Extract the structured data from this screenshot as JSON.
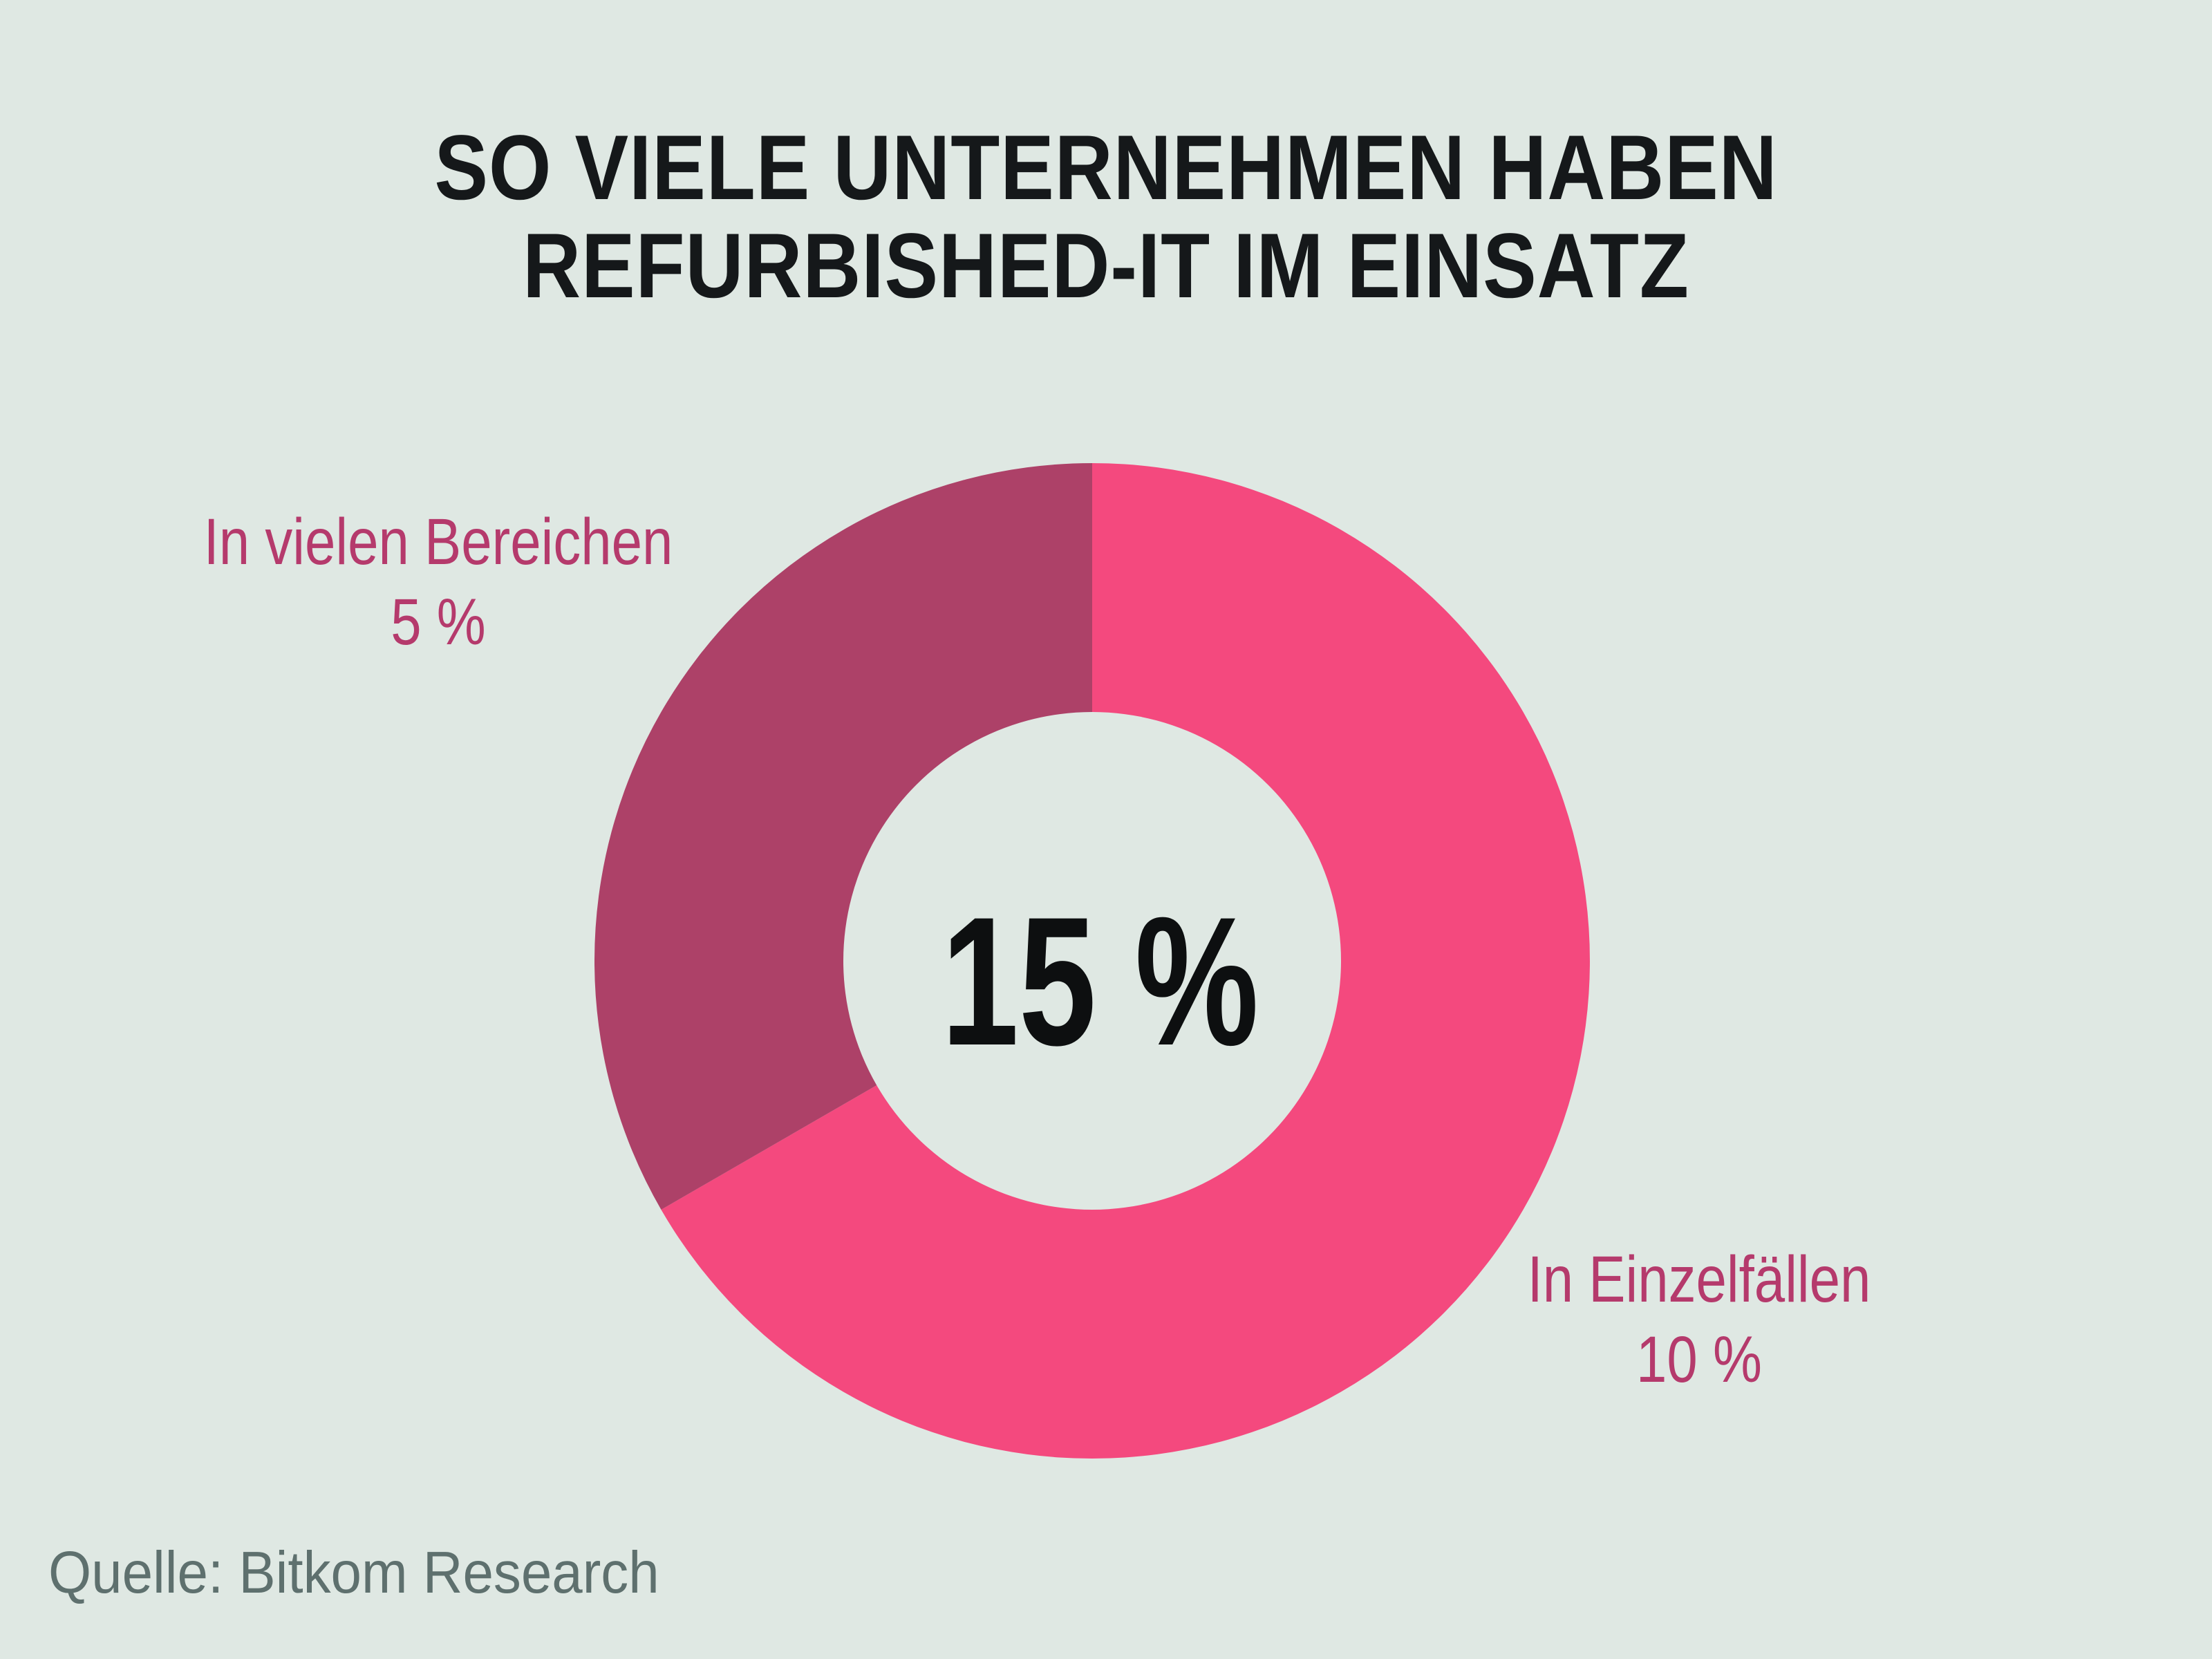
{
  "page": {
    "background_color": "#dfe8e3"
  },
  "title": {
    "line1": "SO VIELE UNTERNEHMEN HABEN",
    "line2": "REFURBISHED-IT IM EINSATZ",
    "color": "#15181a"
  },
  "donut": {
    "center_label": "15 %"
  },
  "labels": {
    "color": "#b53a6c",
    "left": {
      "line1": "In vielen Bereichen",
      "line2": "5 %"
    },
    "right": {
      "line1": "In Einzelfällen",
      "line2": "10 %"
    }
  },
  "source": {
    "text": "Quelle: Bitkom Research",
    "color": "#5e706e"
  },
  "chart_data": {
    "type": "pie",
    "subtype": "donut",
    "title": "SO VIELE UNTERNEHMEN HABEN REFURBISHED-IT IM EINSATZ",
    "center_label": "15 %",
    "total_percent": 15,
    "start_angle_deg": 0,
    "direction": "clockwise",
    "inner_radius_ratio": 0.5,
    "legend_position": "outside-labels",
    "grid": false,
    "segments": [
      {
        "label": "In Einzelfällen",
        "value_percent": 10,
        "value_label": "10 %",
        "color": "#f4497e"
      },
      {
        "label": "In vielen Bereichen",
        "value_percent": 5,
        "value_label": "5 %",
        "color": "#ad4168"
      }
    ],
    "source": "Quelle: Bitkom Research",
    "background_color": "#dfe8e3"
  }
}
